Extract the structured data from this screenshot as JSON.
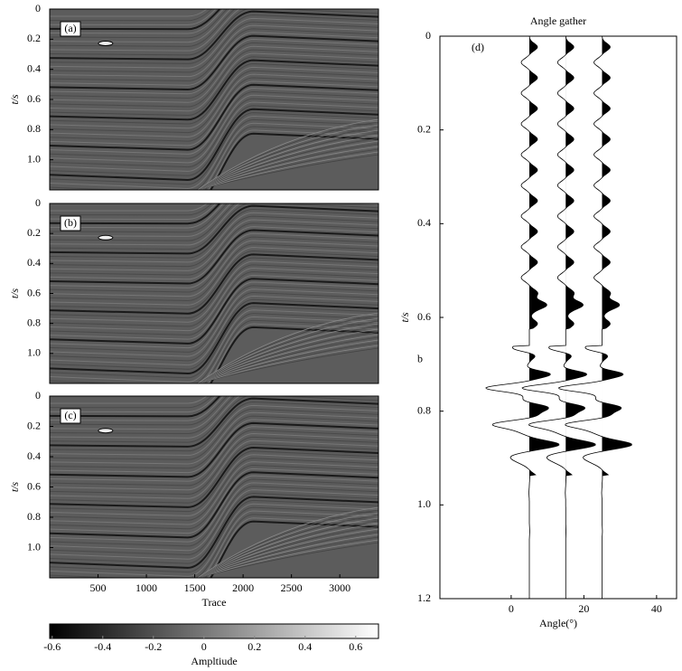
{
  "chart_data": [
    {
      "type": "seismic_section",
      "label": "(a)",
      "ylabel": "t/s",
      "invert_y": true,
      "ylim": [
        0,
        1.2
      ],
      "yticks": [
        0,
        0.2,
        0.4,
        0.6,
        0.8,
        {
          "value": 1,
          "label": "1.0"
        }
      ]
    },
    {
      "type": "seismic_section",
      "label": "(b)",
      "ylabel": "t/s",
      "invert_y": true,
      "ylim": [
        0,
        1.2
      ],
      "yticks": [
        0,
        0.2,
        0.4,
        0.6,
        0.8,
        {
          "value": 1,
          "label": "1.0"
        }
      ]
    },
    {
      "type": "seismic_section",
      "label": "(c)",
      "ylabel": "t/s",
      "xlabel": "Trace",
      "invert_y": true,
      "ylim": [
        0,
        1.2
      ],
      "yticks": [
        0,
        0.2,
        0.4,
        0.6,
        0.8,
        {
          "value": 1,
          "label": "1.0"
        }
      ],
      "xlim": [
        0,
        3400
      ],
      "xticks": [
        500,
        1000,
        1500,
        2000,
        2500,
        3000
      ]
    },
    {
      "type": "colorbar",
      "label": "Ampltiude",
      "lim": [
        -0.61,
        0.69
      ],
      "ticks": [
        -0.6,
        -0.4,
        -0.2,
        0,
        0.2,
        0.4,
        0.6
      ]
    },
    {
      "type": "wiggle",
      "title": "Angle gather",
      "label": "(d)",
      "ylabel": "t/s",
      "xlabel": "Angle(°)",
      "annotation": "b",
      "invert_y": true,
      "xlim": [
        -19.6,
        45.5
      ],
      "ylim": [
        0,
        1.2
      ],
      "xticks": [
        0,
        20,
        40
      ],
      "yticks": [
        0,
        0.2,
        0.4,
        0.6,
        0.8,
        {
          "value": 1,
          "label": "1.0"
        },
        1.2
      ],
      "traces": [
        5,
        15,
        25
      ]
    }
  ]
}
